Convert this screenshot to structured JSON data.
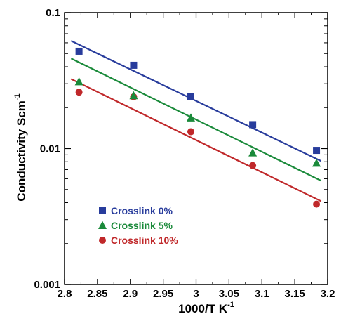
{
  "chart_data": {
    "type": "scatter",
    "title": "",
    "xlabel": "1000/T K",
    "xlabel_sup": "-1",
    "ylabel": "Conductivity  Scm",
    "ylabel_sup": "-1",
    "xlim": [
      2.8,
      3.2
    ],
    "ylim": [
      0.001,
      0.1
    ],
    "yscale": "log",
    "x_ticks": [
      2.8,
      2.85,
      2.9,
      2.95,
      3.0,
      3.05,
      3.1,
      3.15,
      3.2
    ],
    "x_tick_labels": [
      "2.8",
      "2.85",
      "2.9",
      "2.95",
      "3",
      "3.05",
      "3.1",
      "3.15",
      "3.2"
    ],
    "y_ticks": [
      0.001,
      0.01,
      0.1
    ],
    "y_tick_labels": [
      "0.001",
      "0.01",
      "0.1"
    ],
    "grid": false,
    "legend_position": "lower-left",
    "series": [
      {
        "name": "Crosslink 10%",
        "marker": "circle",
        "color": "#c0282a",
        "x": [
          2.822,
          2.905,
          2.992,
          3.086,
          3.183
        ],
        "y": [
          0.026,
          0.024,
          0.0133,
          0.0075,
          0.0039
        ],
        "fit": [
          [
            2.81,
            0.0325
          ],
          [
            3.19,
            0.0041
          ]
        ]
      },
      {
        "name": "Crosslink 5%",
        "marker": "triangle",
        "color": "#1a8a3a",
        "x": [
          2.822,
          2.905,
          2.992,
          3.086,
          3.183
        ],
        "y": [
          0.031,
          0.0245,
          0.0168,
          0.0093,
          0.0078
        ],
        "fit": [
          [
            2.81,
            0.046
          ],
          [
            3.19,
            0.0058
          ]
        ]
      },
      {
        "name": "Crosslink 0%",
        "marker": "square",
        "color": "#283c9c",
        "x": [
          2.822,
          2.905,
          2.992,
          3.086,
          3.183
        ],
        "y": [
          0.052,
          0.041,
          0.024,
          0.015,
          0.0097
        ],
        "fit": [
          [
            2.81,
            0.062
          ],
          [
            3.19,
            0.0081
          ]
        ]
      }
    ]
  }
}
